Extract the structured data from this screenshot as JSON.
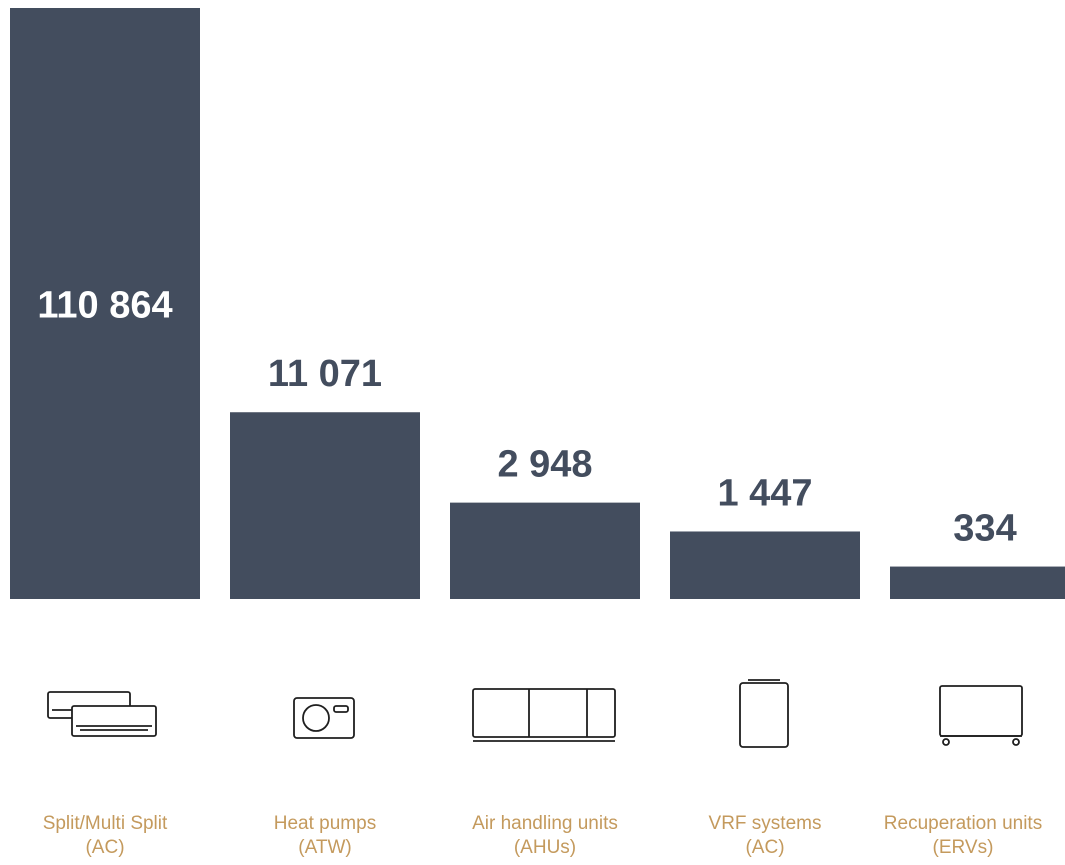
{
  "colors": {
    "bar": "#434d5e",
    "label_inside": "#ffffff",
    "label_outside": "#434d5e",
    "category": "#c49a5d"
  },
  "chart_data": {
    "type": "bar",
    "title": "",
    "xlabel": "",
    "ylabel": "",
    "categories": [
      {
        "line1": "Split/Multi Split",
        "line2": "(AC)",
        "icon": "split-ac-units-icon"
      },
      {
        "line1": "Heat pumps",
        "line2": "(ATW)",
        "icon": "heat-pump-unit-icon"
      },
      {
        "line1": "Air handling units",
        "line2": "(AHUs)",
        "icon": "air-handling-unit-icon"
      },
      {
        "line1": "VRF systems",
        "line2": "(AC)",
        "icon": "vrf-unit-icon"
      },
      {
        "line1": "Recuperation units",
        "line2": "(ERVs)",
        "icon": "recuperation-unit-icon"
      }
    ],
    "values": [
      110864,
      11071,
      2948,
      1447,
      334
    ],
    "value_labels": [
      "110 864",
      "11 071",
      "2 948",
      "1 447",
      "334"
    ],
    "value_axis_scale": "non-linear",
    "grid": false,
    "legend": "none"
  }
}
